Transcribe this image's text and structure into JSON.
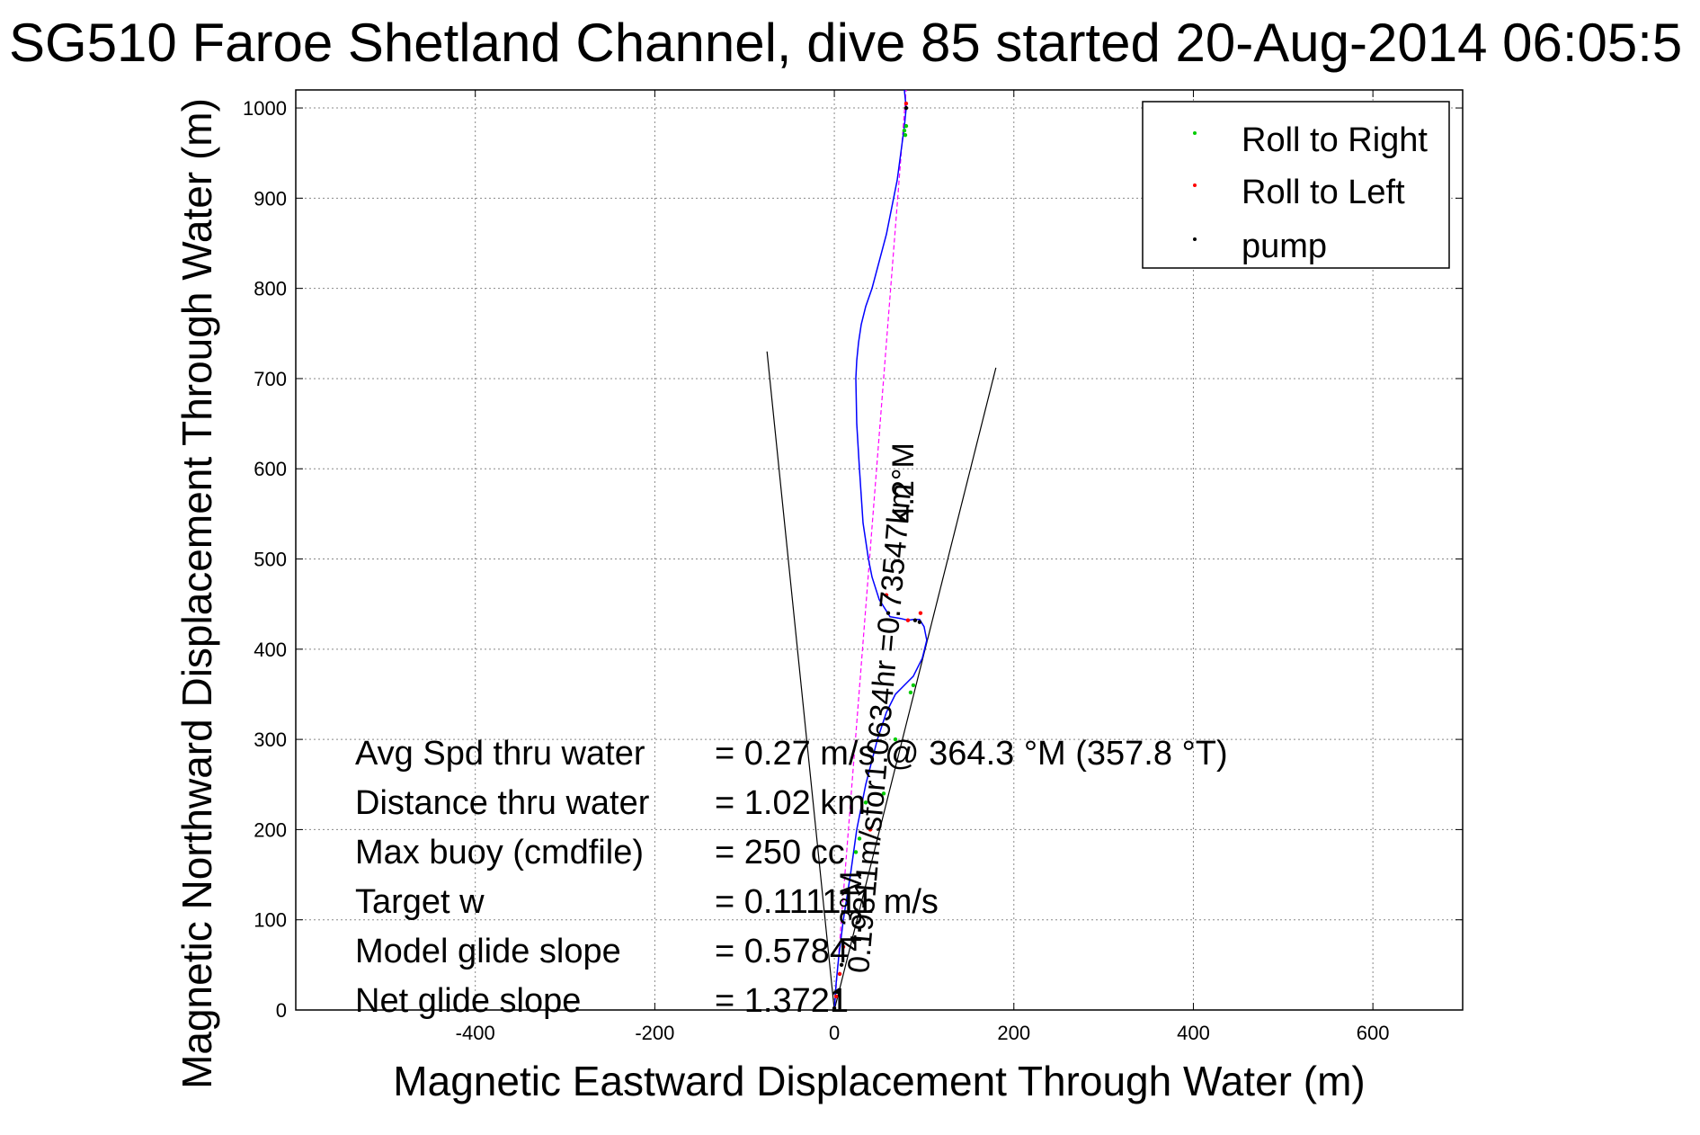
{
  "chart_data": {
    "type": "line",
    "title": "SG510 Faroe Shetland Channel, dive 85 started 20-Aug-2014 06:05:5",
    "xlabel": "Magnetic Eastward Displacement Through Water (m)",
    "ylabel": "Magnetic Northward Displacement Through Water (m)",
    "xlim": [
      -600,
      700
    ],
    "ylim": [
      0,
      1020
    ],
    "xticks": [
      -400,
      -200,
      0,
      200,
      400,
      600
    ],
    "yticks": [
      0,
      100,
      200,
      300,
      400,
      500,
      600,
      700,
      800,
      900,
      1000
    ],
    "grid": true,
    "legend_position": "top-right",
    "legend": [
      {
        "label": "Roll to Right",
        "color": "#00cc00"
      },
      {
        "label": "Roll to Left",
        "color": "#ff0000"
      },
      {
        "label": "pump",
        "color": "#000000"
      }
    ],
    "track": {
      "color": "#0000ff",
      "x": [
        0,
        2,
        5,
        10,
        18,
        25,
        35,
        48,
        58,
        68,
        78,
        88,
        98,
        103,
        100,
        95,
        88,
        82,
        74,
        62,
        50,
        42,
        38,
        32,
        28,
        25,
        24,
        25,
        27,
        30,
        35,
        42,
        50,
        58,
        64,
        70,
        74,
        78,
        80,
        78
      ],
      "y": [
        0,
        30,
        60,
        100,
        150,
        200,
        250,
        300,
        330,
        350,
        360,
        370,
        390,
        410,
        425,
        433,
        433,
        432,
        434,
        436,
        455,
        480,
        500,
        540,
        600,
        650,
        700,
        720,
        740,
        760,
        780,
        800,
        830,
        860,
        890,
        920,
        950,
        980,
        1000,
        1020
      ]
    },
    "series": [
      {
        "name": "Roll to Right",
        "color": "#00cc00",
        "x": [
          24,
          28,
          35,
          55,
          68,
          85,
          88,
          78,
          79,
          80
        ],
        "y": [
          175,
          190,
          230,
          240,
          300,
          352,
          360,
          975,
          970,
          980
        ]
      },
      {
        "name": "Roll to Left",
        "color": "#ff0000",
        "x": [
          2,
          6,
          10,
          40,
          58,
          82,
          96,
          80
        ],
        "y": [
          15,
          40,
          70,
          200,
          460,
          432,
          440,
          1005
        ]
      },
      {
        "name": "pump",
        "color": "#000000",
        "x": [
          0,
          3,
          8,
          60,
          90,
          95,
          80
        ],
        "y": [
          2,
          20,
          50,
          440,
          432,
          430,
          1000
        ]
      }
    ],
    "heading_line": {
      "color": "#ff00ff",
      "x": [
        0,
        80
      ],
      "y": [
        0,
        1020
      ]
    },
    "cone_lines": [
      {
        "x": [
          0,
          -75
        ],
        "y": [
          0,
          730
        ]
      },
      {
        "x": [
          0,
          180
        ],
        "y": [
          0,
          712
        ]
      }
    ],
    "track_annotations": [
      {
        "text": "0.19311m/sfor1.0634hr =0.73547km",
        "x": 38,
        "y": 40,
        "angle": -85,
        "size": 34
      },
      {
        "text": "4.2°M",
        "x": 88,
        "y": 540,
        "angle": -90,
        "size": 34
      },
      {
        "text": "4.3°M",
        "x": 30,
        "y": 65,
        "angle": -90,
        "size": 34
      }
    ],
    "stats": [
      {
        "label": "Avg Spd thru water",
        "value": "=  0.27 m/s @ 364.3 °M (357.8 °T)"
      },
      {
        "label": "Distance thru water",
        "value": "=  1.02 km"
      },
      {
        "label": "Max buoy (cmdfile)",
        "value": "= 250 cc"
      },
      {
        "label": "Target w",
        "value": "= 0.111111 m/s"
      },
      {
        "label": "Model glide slope",
        "value": "= 0.5784"
      },
      {
        "label": "Net glide slope",
        "value": "= 1.3721"
      }
    ]
  }
}
